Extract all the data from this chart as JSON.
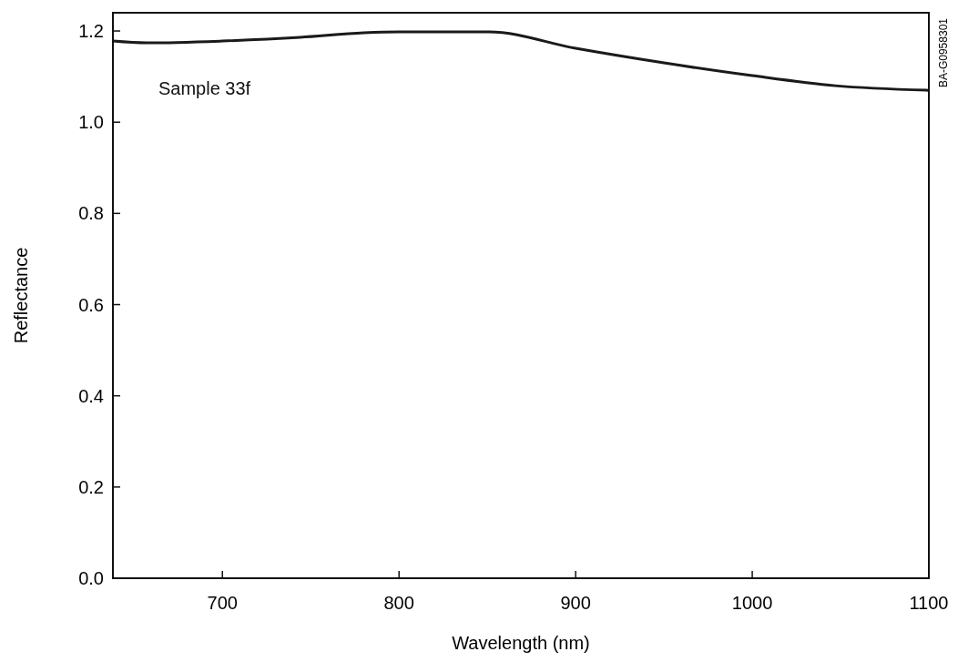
{
  "chart_data": {
    "type": "line",
    "xlabel": "Wavelength (nm)",
    "ylabel": "Reflectance",
    "annotations": [
      "BA-G0958301"
    ],
    "x": [
      638,
      657,
      700,
      744,
      780,
      800,
      851,
      900,
      950,
      1000,
      1047,
      1100
    ],
    "series": [
      {
        "name": "Sample 33f",
        "color": "#1a1a1a",
        "values": [
          1.178,
          1.174,
          1.178,
          1.186,
          1.196,
          1.198,
          1.198,
          1.162,
          1.13,
          1.102,
          1.08,
          1.07
        ]
      }
    ],
    "xlim": [
      638,
      1100
    ],
    "xticks": [
      700,
      800,
      900,
      1000,
      1100
    ],
    "ylim": [
      0,
      1.24
    ],
    "yticks": [
      {
        "value": 0,
        "label": "0.0"
      },
      {
        "value": 0.2,
        "label": "0.2"
      },
      {
        "value": 0.4,
        "label": "0.4"
      },
      {
        "value": 0.6,
        "label": "0.6"
      },
      {
        "value": 0.8,
        "label": "0.8"
      },
      {
        "value": 1,
        "label": "1.0"
      },
      {
        "value": 1.2,
        "label": "1.2"
      }
    ],
    "grid": false,
    "marker": "none",
    "line_style": "solid"
  }
}
